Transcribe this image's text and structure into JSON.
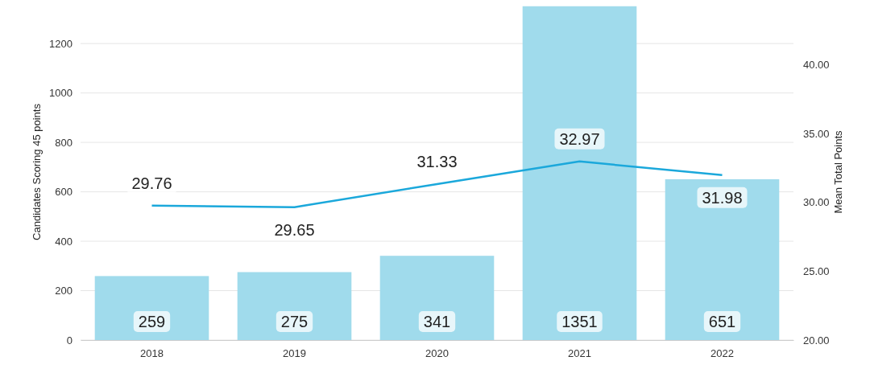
{
  "chart_data": {
    "type": "bar",
    "categories": [
      "2018",
      "2019",
      "2020",
      "2021",
      "2022"
    ],
    "series": [
      {
        "color": "#a0dbec",
        "values": [
          259,
          275,
          341,
          1351,
          651
        ]
      },
      {
        "type": "line",
        "axis": "y2",
        "color": "#1ba8db",
        "values": [
          29.76,
          29.65,
          31.33,
          32.97,
          31.98
        ]
      }
    ],
    "ylabel": "Candidates Scoring 45 points",
    "y2label": "Mean Total Points",
    "ylim": [
      0,
      1360
    ],
    "yticks": [
      0,
      200,
      400,
      600,
      800,
      1000,
      1200
    ],
    "y2lim": [
      20,
      44.4
    ],
    "y2ticks": [
      {
        "value": 20,
        "label": "20.00"
      },
      {
        "value": 25,
        "label": "25.00"
      },
      {
        "value": 30,
        "label": "30.00"
      },
      {
        "value": 35,
        "label": "35.00"
      },
      {
        "value": 40,
        "label": "40.00"
      }
    ],
    "grid": "y",
    "data_labels": true,
    "marker": "none",
    "line_style": "solid"
  }
}
